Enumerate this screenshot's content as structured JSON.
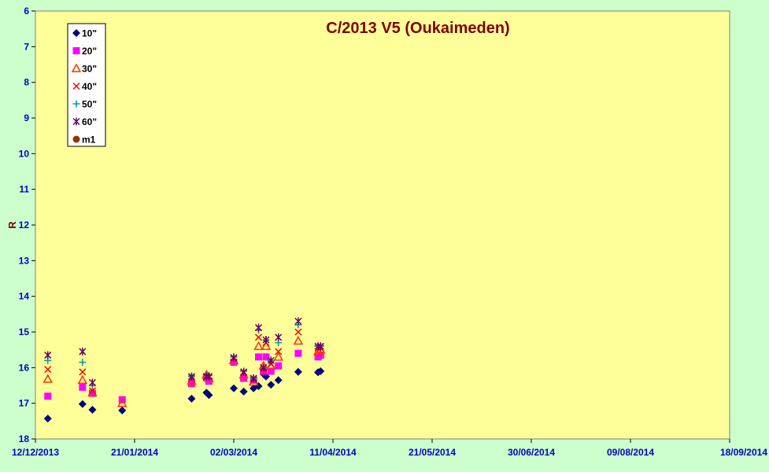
{
  "chart_data": {
    "type": "scatter",
    "title": "C/2013 V5 (Oukaimeden)",
    "xlabel": "",
    "ylabel": "R",
    "x_axis_kind": "date",
    "xlim": [
      "2013-12-12",
      "2014-09-18"
    ],
    "x_ticks": [
      "12/12/2013",
      "21/01/2014",
      "02/03/2014",
      "11/04/2014",
      "21/05/2014",
      "30/06/2014",
      "09/08/2014",
      "18/09/2014"
    ],
    "ylim": [
      6,
      18
    ],
    "y_inverted": true,
    "y_ticks": [
      "6",
      "7",
      "8",
      "9",
      "10",
      "11",
      "12",
      "13",
      "14",
      "15",
      "16",
      "17",
      "18"
    ],
    "grid": false,
    "legend_position": "top-left",
    "plot_background": "#ffff99",
    "page_background": "#ccffcc",
    "series": [
      {
        "name": "10\"",
        "marker": "diamond",
        "color": "#000080",
        "points": [
          [
            "2013-12-17",
            17.43
          ],
          [
            "2013-12-31",
            17.02
          ],
          [
            "2014-01-04",
            17.18
          ],
          [
            "2014-01-16",
            17.2
          ],
          [
            "2014-02-13",
            16.87
          ],
          [
            "2014-02-19",
            16.7
          ],
          [
            "2014-02-20",
            16.77
          ],
          [
            "2014-03-02",
            16.58
          ],
          [
            "2014-03-06",
            16.67
          ],
          [
            "2014-03-10",
            16.58
          ],
          [
            "2014-03-12",
            16.52
          ],
          [
            "2014-03-17",
            16.48
          ],
          [
            "2014-03-14",
            16.18
          ],
          [
            "2014-03-15",
            16.25
          ],
          [
            "2014-03-20",
            16.35
          ],
          [
            "2014-03-28",
            16.12
          ],
          [
            "2014-04-05",
            16.13
          ],
          [
            "2014-04-06",
            16.1
          ]
        ]
      },
      {
        "name": "20\"",
        "marker": "square",
        "color": "#ff00ff",
        "points": [
          [
            "2013-12-17",
            16.8
          ],
          [
            "2013-12-31",
            16.55
          ],
          [
            "2014-01-04",
            16.72
          ],
          [
            "2014-01-16",
            16.9
          ],
          [
            "2014-02-13",
            16.45
          ],
          [
            "2014-02-19",
            16.28
          ],
          [
            "2014-02-20",
            16.38
          ],
          [
            "2014-03-02",
            15.85
          ],
          [
            "2014-03-06",
            16.3
          ],
          [
            "2014-03-10",
            16.35
          ],
          [
            "2014-03-12",
            15.7
          ],
          [
            "2014-03-14",
            16.1
          ],
          [
            "2014-03-15",
            15.7
          ],
          [
            "2014-03-17",
            16.1
          ],
          [
            "2014-03-20",
            15.95
          ],
          [
            "2014-03-28",
            15.6
          ],
          [
            "2014-04-05",
            15.7
          ],
          [
            "2014-04-06",
            15.65
          ]
        ]
      },
      {
        "name": "30\"",
        "marker": "triangle",
        "color": "#ff3300",
        "points": [
          [
            "2013-12-17",
            16.32
          ],
          [
            "2013-12-31",
            16.35
          ],
          [
            "2014-01-04",
            16.7
          ],
          [
            "2014-01-16",
            17.0
          ],
          [
            "2014-02-13",
            16.38
          ],
          [
            "2014-02-19",
            16.2
          ],
          [
            "2014-02-20",
            16.3
          ],
          [
            "2014-03-02",
            15.8
          ],
          [
            "2014-03-06",
            16.2
          ],
          [
            "2014-03-10",
            16.4
          ],
          [
            "2014-03-12",
            15.4
          ],
          [
            "2014-03-14",
            15.95
          ],
          [
            "2014-03-15",
            15.4
          ],
          [
            "2014-03-17",
            15.95
          ],
          [
            "2014-03-20",
            15.7
          ],
          [
            "2014-03-28",
            15.25
          ],
          [
            "2014-04-05",
            15.55
          ],
          [
            "2014-04-06",
            15.5
          ]
        ]
      },
      {
        "name": "40\"",
        "marker": "x",
        "color": "#ff0000",
        "points": [
          [
            "2013-12-17",
            16.05
          ],
          [
            "2013-12-31",
            16.12
          ],
          [
            "2014-01-04",
            16.65
          ],
          [
            "2014-02-13",
            16.3
          ],
          [
            "2014-02-19",
            16.25
          ],
          [
            "2014-02-20",
            16.25
          ],
          [
            "2014-03-02",
            15.75
          ],
          [
            "2014-03-06",
            16.15
          ],
          [
            "2014-03-10",
            16.35
          ],
          [
            "2014-03-12",
            15.15
          ],
          [
            "2014-03-14",
            16.05
          ],
          [
            "2014-03-15",
            15.3
          ],
          [
            "2014-03-17",
            15.9
          ],
          [
            "2014-03-20",
            15.55
          ],
          [
            "2014-03-28",
            15.0
          ],
          [
            "2014-04-05",
            15.45
          ],
          [
            "2014-04-06",
            15.45
          ]
        ]
      },
      {
        "name": "50\"",
        "marker": "plus",
        "color": "#009999",
        "points": [
          [
            "2013-12-17",
            15.8
          ],
          [
            "2013-12-31",
            15.85
          ],
          [
            "2014-01-04",
            16.5
          ],
          [
            "2014-02-13",
            16.25
          ],
          [
            "2014-02-19",
            16.22
          ],
          [
            "2014-02-20",
            16.22
          ],
          [
            "2014-03-02",
            15.7
          ],
          [
            "2014-03-06",
            16.1
          ],
          [
            "2014-03-10",
            16.3
          ],
          [
            "2014-03-12",
            14.95
          ],
          [
            "2014-03-14",
            16.0
          ],
          [
            "2014-03-15",
            15.22
          ],
          [
            "2014-03-17",
            15.8
          ],
          [
            "2014-03-20",
            15.3
          ],
          [
            "2014-03-28",
            14.8
          ],
          [
            "2014-04-05",
            15.4
          ],
          [
            "2014-04-06",
            15.4
          ]
        ]
      },
      {
        "name": "60\"",
        "marker": "star",
        "color": "#660066",
        "points": [
          [
            "2013-12-17",
            15.65
          ],
          [
            "2013-12-31",
            15.55
          ],
          [
            "2014-01-04",
            16.42
          ],
          [
            "2014-02-13",
            16.25
          ],
          [
            "2014-02-19",
            16.25
          ],
          [
            "2014-02-20",
            16.25
          ],
          [
            "2014-03-02",
            15.72
          ],
          [
            "2014-03-06",
            16.12
          ],
          [
            "2014-03-10",
            16.3
          ],
          [
            "2014-03-12",
            14.88
          ],
          [
            "2014-03-14",
            16.0
          ],
          [
            "2014-03-15",
            15.22
          ],
          [
            "2014-03-17",
            15.8
          ],
          [
            "2014-03-20",
            15.15
          ],
          [
            "2014-03-28",
            14.7
          ],
          [
            "2014-04-05",
            15.4
          ],
          [
            "2014-04-06",
            15.4
          ]
        ]
      },
      {
        "name": "m1",
        "marker": "circle",
        "color": "#993300",
        "points": []
      }
    ]
  }
}
